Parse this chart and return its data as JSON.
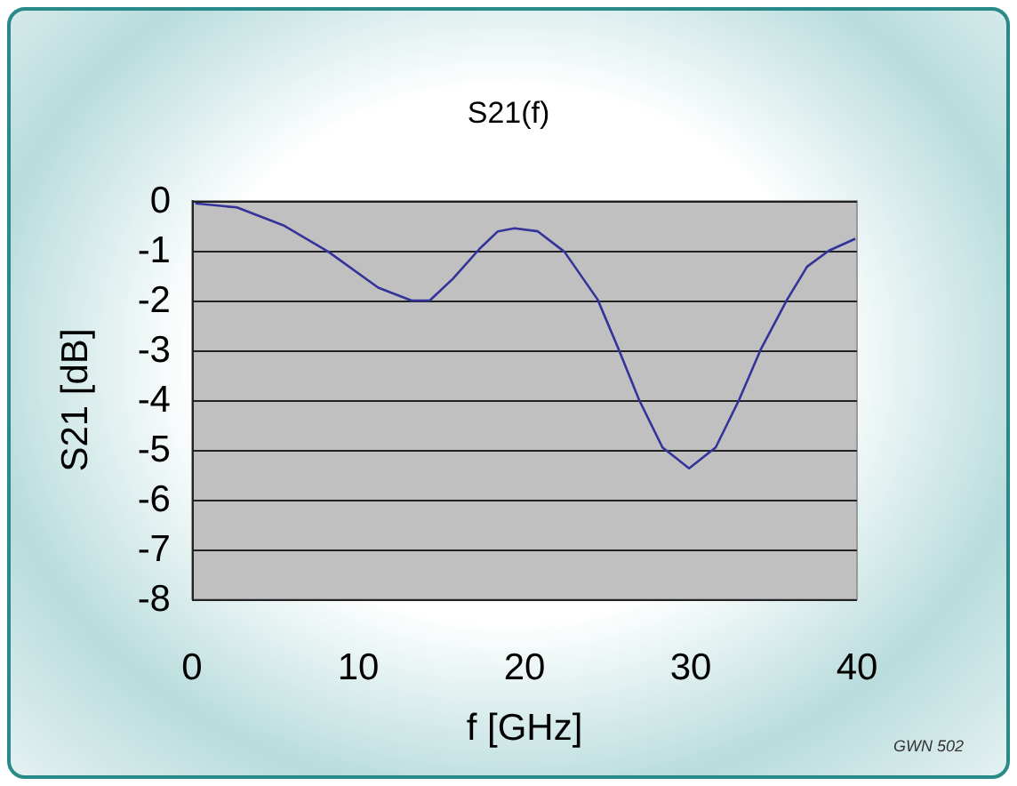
{
  "chart_data": {
    "type": "line",
    "title": "S21(f)",
    "xlabel": "f [GHz]",
    "ylabel": "S21 [dB]",
    "annotations": [
      "GWN 502"
    ],
    "x": [
      0.2,
      2.7,
      5.5,
      8.2,
      11.2,
      13.2,
      14.3,
      15.7,
      17.3,
      18.4,
      19.4,
      20.8,
      22.4,
      24.4,
      25.6,
      26.9,
      28.3,
      29.9,
      31.5,
      32.9,
      34.2,
      35.8,
      37.0,
      38.3,
      39.9
    ],
    "series": [
      {
        "color": "#333399",
        "values": [
          -0.05,
          -0.13,
          -0.49,
          -1.02,
          -1.74,
          -2.0,
          -2.0,
          -1.56,
          -0.96,
          -0.61,
          -0.55,
          -0.61,
          -1.02,
          -1.98,
          -2.93,
          -4.0,
          -4.95,
          -5.37,
          -4.95,
          -4.0,
          -2.99,
          -1.98,
          -1.32,
          -1.0,
          -0.76
        ]
      }
    ],
    "xlim": [
      0,
      40
    ],
    "xticks": [
      0,
      10,
      20,
      30,
      40
    ],
    "ylim": [
      -8,
      0
    ],
    "yticks": [
      0,
      -1,
      -2,
      -3,
      -4,
      -5,
      -6,
      -7,
      -8
    ],
    "grid": "y",
    "marker": "none",
    "line_style": "solid"
  }
}
